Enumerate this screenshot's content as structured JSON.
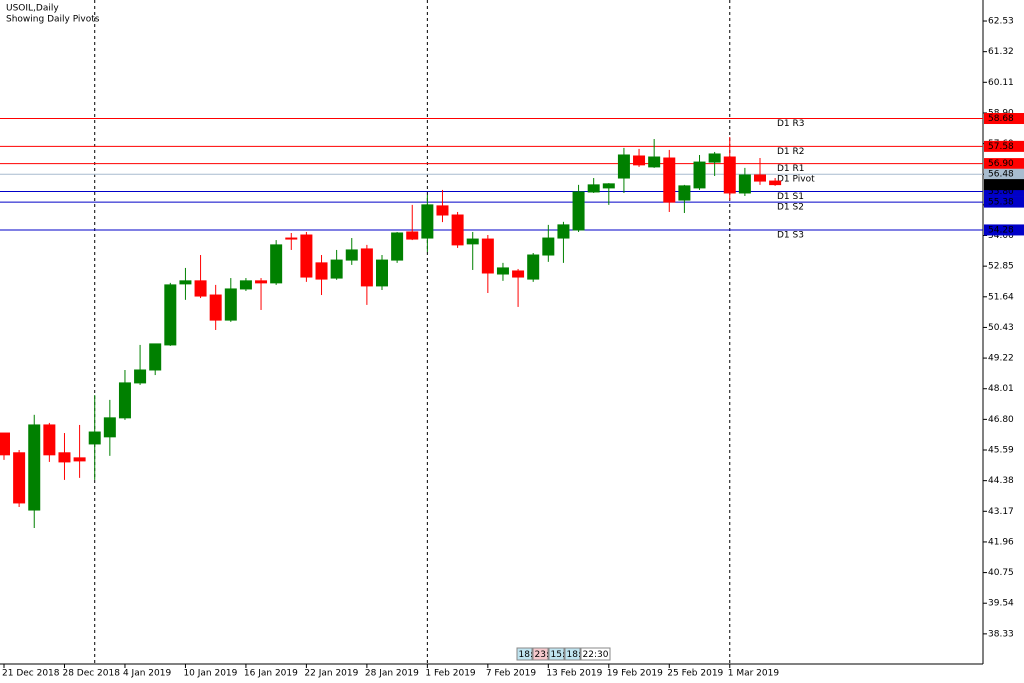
{
  "chart_data": {
    "type": "candlestick",
    "title": "USOIL,Daily",
    "subtitle": "Showing Daily Pivots",
    "categories": [
      "21 Dec 2018",
      null,
      null,
      null,
      "28 Dec 2018",
      null,
      null,
      null,
      "4 Jan 2019",
      null,
      null,
      null,
      "10 Jan 2019",
      null,
      null,
      null,
      "16 Jan 2019",
      null,
      null,
      null,
      "22 Jan 2019",
      null,
      null,
      null,
      "28 Jan 2019",
      null,
      null,
      null,
      "1 Feb 2019",
      null,
      null,
      null,
      "7 Feb 2019",
      null,
      null,
      null,
      "13 Feb 2019",
      null,
      null,
      null,
      "19 Feb 2019",
      null,
      null,
      null,
      "25 Feb 2019",
      null,
      null,
      null,
      "1 Mar 2019",
      null,
      null,
      null
    ],
    "open": [
      46.26,
      45.48,
      43.22,
      46.58,
      45.48,
      45.28,
      45.83,
      46.11,
      46.86,
      48.24,
      48.75,
      49.74,
      52.15,
      52.27,
      51.71,
      50.72,
      51.95,
      52.27,
      52.19,
      53.96,
      54.08,
      52.98,
      52.38,
      53.09,
      53.53,
      52.07,
      53.09,
      54.2,
      53.96,
      55.23,
      54.87,
      53.73,
      53.92,
      52.54,
      52.66,
      52.34,
      53.29,
      53.96,
      54.28,
      55.78,
      55.94,
      56.33,
      57.2,
      56.77,
      57.12,
      55.46,
      55.94,
      56.96,
      57.16,
      55.74,
      56.45,
      56.21
    ],
    "high": [
      46.26,
      45.59,
      46.98,
      46.66,
      46.26,
      46.58,
      47.76,
      47.57,
      48.75,
      49.74,
      49.78,
      52.19,
      52.78,
      53.29,
      52.11,
      52.38,
      52.38,
      52.38,
      53.88,
      54.16,
      54.2,
      53.29,
      53.49,
      53.96,
      53.69,
      53.29,
      54.2,
      55.27,
      55.66,
      55.86,
      54.99,
      54.2,
      54.08,
      52.98,
      52.74,
      53.37,
      54.48,
      54.6,
      56.06,
      56.33,
      56.13,
      57.52,
      57.48,
      57.87,
      57.44,
      56.06,
      57.24,
      57.36,
      57.95,
      56.73,
      57.12,
      56.33
    ],
    "low": [
      45.2,
      43.34,
      42.51,
      45.12,
      44.41,
      44.49,
      44.41,
      45.36,
      46.78,
      48.16,
      48.55,
      49.7,
      51.52,
      51.59,
      50.33,
      50.65,
      51.87,
      51.12,
      52.11,
      53.49,
      52.23,
      51.71,
      52.31,
      52.9,
      51.32,
      51.91,
      52.98,
      53.88,
      53.41,
      54.59,
      53.57,
      52.7,
      51.79,
      52.27,
      51.24,
      52.23,
      53.02,
      52.98,
      54.2,
      55.74,
      55.27,
      55.74,
      56.77,
      56.73,
      54.99,
      54.95,
      55.86,
      56.41,
      55.46,
      55.62,
      56.06,
      56.02
    ],
    "close": [
      45.4,
      43.5,
      46.58,
      45.4,
      45.12,
      45.16,
      46.3,
      46.86,
      48.24,
      48.75,
      49.78,
      52.11,
      52.27,
      51.67,
      50.72,
      51.95,
      52.27,
      52.19,
      53.69,
      53.92,
      52.42,
      52.34,
      53.09,
      53.49,
      52.07,
      53.09,
      54.16,
      53.92,
      55.27,
      54.87,
      53.69,
      53.92,
      52.58,
      52.78,
      52.42,
      53.29,
      53.96,
      54.48,
      55.78,
      56.06,
      56.1,
      57.24,
      56.85,
      57.16,
      55.38,
      56.02,
      56.96,
      57.28,
      55.74,
      56.45,
      56.21,
      56.07
    ],
    "up_color": "#008000",
    "down_color": "#ff0000",
    "ylim": [
      37.14,
      63.36
    ],
    "yticks": [
      62.53,
      61.32,
      60.11,
      {
        "value": 58.9,
        "label": "58.90"
      },
      57.69,
      56.48,
      55.27,
      54.06,
      52.85,
      51.64,
      50.43,
      49.22,
      48.01,
      {
        "value": 46.8,
        "label": "46.80"
      },
      45.59,
      44.38,
      43.17,
      41.96,
      40.75,
      39.54,
      38.33
    ],
    "levels": [
      {
        "name": "D1 R3",
        "value": 58.68,
        "color": "#ff0000"
      },
      {
        "name": "D1 R2",
        "value": 57.58,
        "color": "#ff0000"
      },
      {
        "name": "D1 R1",
        "value": 56.9,
        "value_label": "56.90",
        "color": "#ff0000"
      },
      {
        "name": "D1 Pivot",
        "value": 56.48,
        "color": "#a8bccf"
      },
      {
        "name": "D1 S1",
        "value": 55.8,
        "value_label": "55.80",
        "color": "#0000c8"
      },
      {
        "name": "D1 S2",
        "value": 55.38,
        "color": "#0000c8"
      },
      {
        "name": "D1 S3",
        "value": 54.28,
        "color": "#0000c8"
      }
    ],
    "timer": [
      "18:",
      "23:",
      "15:",
      "18:",
      "22:30"
    ]
  }
}
